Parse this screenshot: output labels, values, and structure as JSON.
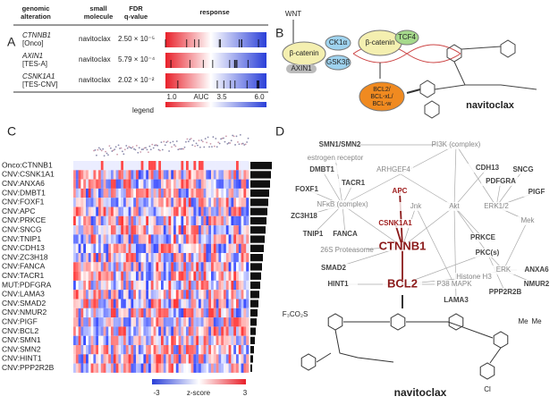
{
  "panels": {
    "a": "A",
    "b": "B",
    "c": "C",
    "d": "D"
  },
  "panel_a": {
    "headers": [
      [
        "genomic",
        "alteration"
      ],
      [
        "small",
        "molecule"
      ],
      [
        "FDR",
        "q-value"
      ],
      [
        "response"
      ]
    ],
    "rows": [
      {
        "gene": "CTNNB1",
        "tag": "[Onco]",
        "molecule": "navitoclax",
        "q": "2.50 × 10⁻⁵"
      },
      {
        "gene": "AXIN1",
        "tag": "[TES-A]",
        "molecule": "navitoclax",
        "q": "5.79 × 10⁻⁴"
      },
      {
        "gene": "CSNK1A1",
        "tag": "[TES-CNV]",
        "molecule": "navitoclax",
        "q": "2.02 × 10⁻²"
      }
    ],
    "legend": {
      "title": "legend",
      "low": "1.0",
      "axis": "AUC",
      "mid": "3.5",
      "high": "6.0"
    }
  },
  "panel_b": {
    "wnt": "WNT",
    "bcat1": "β-catenin",
    "axin": "AXIN1",
    "ck1": "CK1α",
    "gsk": "GSK3β",
    "bcat2": "β-catenin",
    "tcf": "TCF4",
    "bcl": [
      "BCL2/",
      "BCL-xL/",
      "BCL-w"
    ],
    "drug": "navitoclax"
  },
  "panel_c": {
    "rows": [
      "Onco:CTNNB1",
      "CNV:CSNK1A1",
      "CNV:ANXA6",
      "CNV:DMBT1",
      "CNV:FOXF1",
      "CNV:APC",
      "CNV:PRKCE",
      "CNV:SNCG",
      "CNV:TNIP1",
      "CNV:CDH13",
      "CNV:ZC3H18",
      "CNV:FANCA",
      "CNV:TACR1",
      "MUT:PDFGRA",
      "CNV:LAMA3",
      "CNV:SMAD2",
      "CNV:NMUR2",
      "CNV:PIGF",
      "CNV:BCL2",
      "CNV:SMN1",
      "CNV:SMN2",
      "CNV:HINT1",
      "CNV:PPP2R2B"
    ],
    "highlight": [
      0,
      1,
      5,
      18
    ],
    "colorbar": {
      "low": "-3",
      "label": "z-score",
      "high": "3"
    }
  },
  "panel_d": {
    "nodes": [
      "SMN1/SMN2",
      "PI3K (complex)",
      "estrogen receptor",
      "DMBT1",
      "ARHGEF4",
      "CDH13",
      "SNCG",
      "TACR1",
      "PDFGRA",
      "FOXF1",
      "APC",
      "PIGF",
      "NFκB (complex)",
      "Jnk",
      "Akt",
      "ERK1/2",
      "ZC3H18",
      "CSNK1A1",
      "Mek",
      "TNIP1",
      "FANCA",
      "PRKCE",
      "CTNNB1",
      "26S Proteasome",
      "PKC(s)",
      "ERK",
      "ANXA6",
      "SMAD2",
      "Histone H3",
      "NMUR2",
      "HINT1",
      "BCL2",
      "P38 MAPK",
      "PPP2R2B",
      "LAMA3"
    ],
    "drug": "navitoclax",
    "structure": [
      "F₃CO₂S",
      "Me",
      "Me",
      "Cl"
    ]
  }
}
